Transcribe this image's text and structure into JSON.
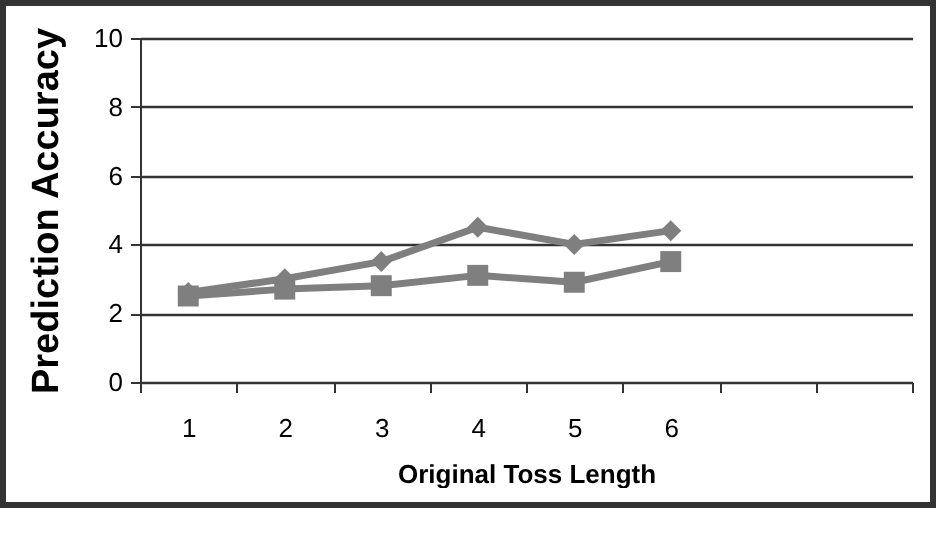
{
  "chart_data": {
    "type": "line",
    "xlabel": "Original Toss Length",
    "ylabel": "Prediction Accuracy",
    "categories": [
      "1",
      "2",
      "3",
      "4",
      "5",
      "6",
      null,
      null
    ],
    "series": [
      {
        "color": "#7f7f7f",
        "marker": "diamond",
        "values": [
          2.6,
          3.0,
          3.5,
          4.5,
          4.0,
          4.4,
          null,
          null
        ]
      },
      {
        "color": "#7f7f7f",
        "marker": "square",
        "values": [
          2.5,
          2.7,
          2.8,
          3.1,
          2.9,
          3.5,
          null,
          null
        ]
      }
    ],
    "ylim": [
      0,
      10
    ],
    "yticks": [
      0,
      2,
      4,
      6,
      8,
      10
    ],
    "grid": "y",
    "line_style": "solid"
  }
}
